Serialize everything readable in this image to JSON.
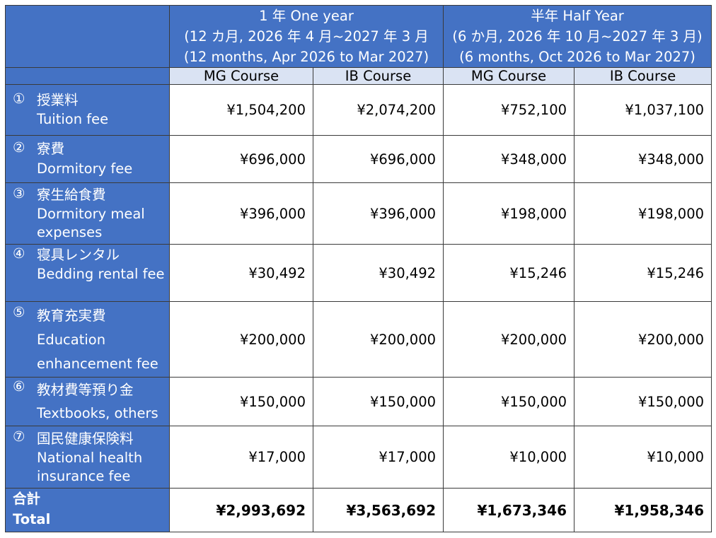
{
  "header": {
    "one_year": {
      "line1": "1 年  One year",
      "line2": "(12 カ月, 2026 年 4 月~2027 年 3 月",
      "line3": "(12 months, Apr 2026 to Mar 2027)"
    },
    "half_year": {
      "line1": "半年  Half Year",
      "line2": "(6 か月, 2026 年 10 月~2027 年 3 月)",
      "line3": "(6 months, Oct 2026 to Mar 2027)"
    },
    "courses": [
      "MG Course",
      "IB Course",
      "MG Course",
      "IB Course"
    ]
  },
  "rows": [
    {
      "num": "①",
      "jp": "授業料",
      "en": "Tuition fee",
      "values": [
        "¥1,504,200",
        "¥2,074,200",
        "¥752,100",
        "¥1,037,100"
      ]
    },
    {
      "num": "②",
      "jp": "寮費",
      "en": "Dormitory fee",
      "values": [
        "¥696,000",
        "¥696,000",
        "¥348,000",
        "¥348,000"
      ]
    },
    {
      "num": "③",
      "jp": "寮生給食費",
      "en": "Dormitory meal expenses",
      "values": [
        "¥396,000",
        "¥396,000",
        "¥198,000",
        "¥198,000"
      ]
    },
    {
      "num": "④",
      "jp": "寝具レンタル",
      "en": "Bedding rental fee",
      "values": [
        "¥30,492",
        "¥30,492",
        "¥15,246",
        "¥15,246"
      ]
    },
    {
      "num": "⑤",
      "jp": "教育充実費",
      "en": "Education enhancement fee",
      "values": [
        "¥200,000",
        "¥200,000",
        "¥200,000",
        "¥200,000"
      ]
    },
    {
      "num": "⑥",
      "jp": "教材費等預り金",
      "en": "Textbooks, others",
      "values": [
        "¥150,000",
        "¥150,000",
        "¥150,000",
        "¥150,000"
      ]
    },
    {
      "num": "⑦",
      "jp": "国民健康保険料",
      "en": "National health insurance fee",
      "values": [
        "¥17,000",
        "¥17,000",
        "¥10,000",
        "¥10,000"
      ]
    }
  ],
  "total": {
    "jp": "合計",
    "en": "Total",
    "values": [
      "¥2,993,692",
      "¥3,563,692",
      "¥1,673,346",
      "¥1,958,346"
    ]
  },
  "colors": {
    "header_blue": "#4472c4",
    "subheader_light": "#dae3f3",
    "border": "#3a3a3a"
  }
}
